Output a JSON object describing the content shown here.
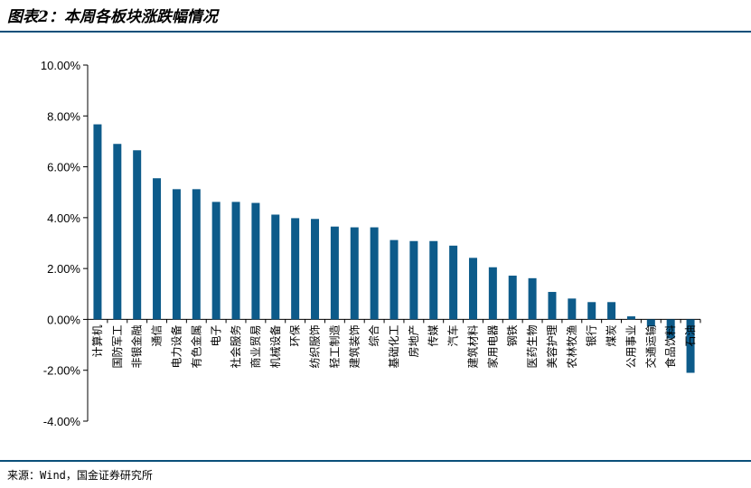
{
  "title": "图表2：本周各板块涨跌幅情况",
  "source": "来源：Wind，国金证券研究所",
  "colors": {
    "bar": "#0d5b8a",
    "rule": "#0a4f7a",
    "axis": "#000000"
  },
  "chart_data": {
    "type": "bar",
    "title": "",
    "xlabel": "",
    "ylabel": "",
    "ylim": [
      -0.04,
      0.1
    ],
    "y_ticks": [
      "10.00%",
      "8.00%",
      "6.00%",
      "4.00%",
      "2.00%",
      "0.00%",
      "-2.00%",
      "-4.00%"
    ],
    "grid": false,
    "legend": "none",
    "categories": [
      "计算机",
      "国防军工",
      "非银金融",
      "通信",
      "电力设备",
      "有色金属",
      "电子",
      "社会服务",
      "商业贸易",
      "机械设备",
      "环保",
      "纺织服饰",
      "轻工制造",
      "建筑装饰",
      "综合",
      "基础化工",
      "房地产",
      "传媒",
      "汽车",
      "建筑材料",
      "家用电器",
      "钢铁",
      "医药生物",
      "美容护理",
      "农林牧渔",
      "银行",
      "煤炭",
      "公用事业",
      "交通运输",
      "食品饮料",
      "石油"
    ],
    "values": [
      0.0767,
      0.069,
      0.0665,
      0.0555,
      0.0512,
      0.0512,
      0.0462,
      0.0462,
      0.0458,
      0.0412,
      0.0398,
      0.0395,
      0.0365,
      0.0362,
      0.0362,
      0.0312,
      0.0308,
      0.0308,
      0.029,
      0.0242,
      0.0205,
      0.0172,
      0.0162,
      0.0108,
      0.0082,
      0.0068,
      0.0068,
      0.0012,
      -0.0028,
      -0.0075,
      -0.021
    ]
  }
}
